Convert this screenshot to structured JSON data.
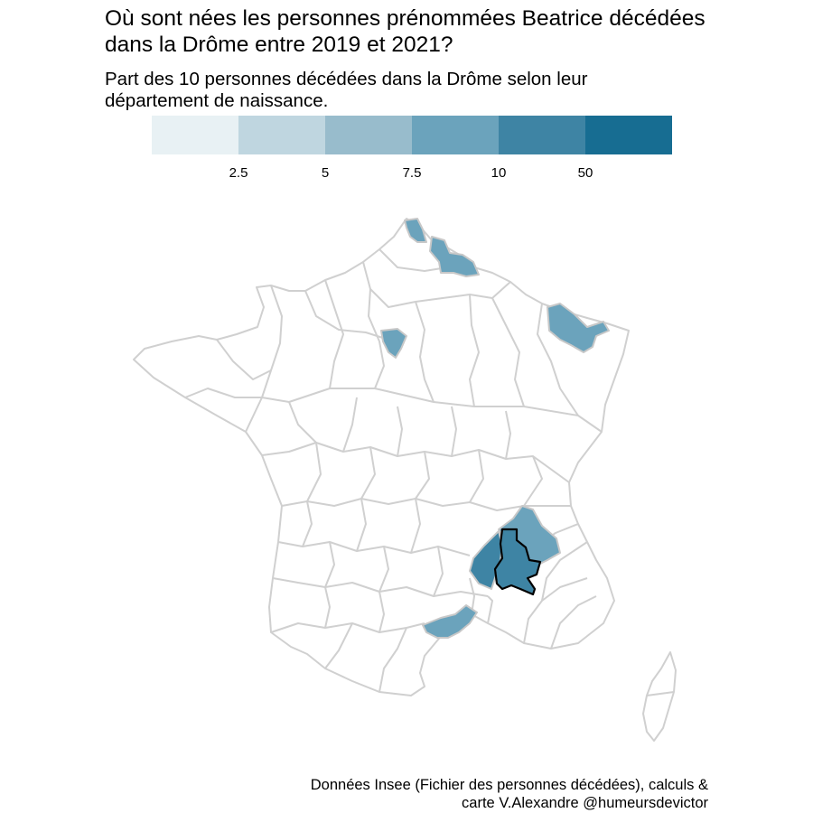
{
  "title_line1": "Où sont nées les personnes prénommées Beatrice décédées",
  "title_line2": "dans la Drôme entre 2019 et 2021?",
  "subtitle_line1": "Part des 10 personnes décédées dans la Drôme selon leur",
  "subtitle_line2": "département de naissance.",
  "legend": {
    "colors": [
      "#e8f1f4",
      "#bfd6e0",
      "#98bccc",
      "#6ba3bc",
      "#3e84a4",
      "#176d92"
    ],
    "breaks": [
      "2.5",
      "5",
      "7.5",
      "10",
      "50"
    ]
  },
  "map": {
    "border_color": "#d0d0d0",
    "highlight_border_color": "#000000",
    "highlighted_department": "Drôme"
  },
  "caption_line1": "Données Insee (Fichier des personnes décédées), calculs &",
  "caption_line2": "carte V.Alexandre @humeursdevictor"
}
